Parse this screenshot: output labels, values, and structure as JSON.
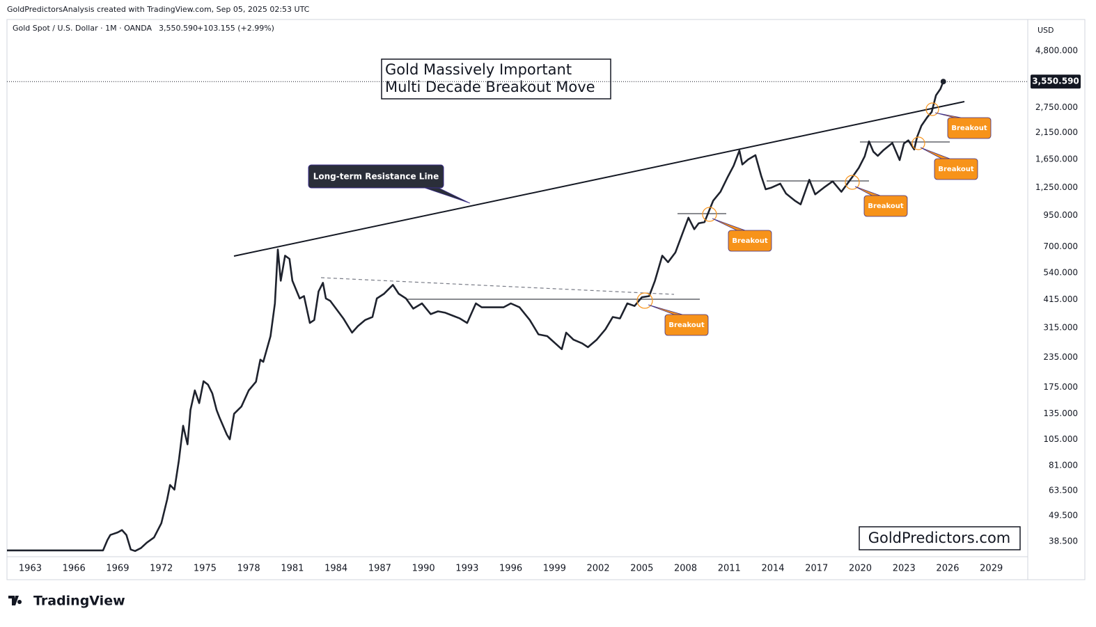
{
  "chart_data": {
    "type": "line",
    "attribution": "GoldPredictorsAnalysis created with TradingView.com, Sep 05, 2025 02:53 UTC",
    "last_price": {
      "value": 3550.59,
      "label": "3,550.590"
    },
    "change": "+103.155 (+2.99%)",
    "currency": "USD",
    "title": [
      "Gold Massively Important",
      "Multi Decade Breakout Move"
    ],
    "annotations": {
      "resistance": "Long-term Resistance Line",
      "breakouts": [
        "Breakout",
        "Breakout",
        "Breakout",
        "Breakout",
        "Breakout"
      ]
    },
    "watermark": "GoldPredictors.com",
    "brand": "TradingView",
    "yscale": "log",
    "grid": false,
    "xlim": [
      1961.4,
      2031.5
    ],
    "ylim": [
      33.08,
      6540
    ],
    "xticks": [
      1963,
      1966,
      1969,
      1972,
      1975,
      1978,
      1981,
      1984,
      1987,
      1990,
      1993,
      1996,
      1999,
      2002,
      2005,
      2008,
      2011,
      2014,
      2017,
      2020,
      2023,
      2026,
      2029
    ],
    "yticks": [
      {
        "value": 4800,
        "label": "4,800.000"
      },
      {
        "value": 2750,
        "label": "2,750.000"
      },
      {
        "value": 2150,
        "label": "2,150.000"
      },
      {
        "value": 1650,
        "label": "1,650.000"
      },
      {
        "value": 1250,
        "label": "1,250.000"
      },
      {
        "value": 950,
        "label": "950.000"
      },
      {
        "value": 700,
        "label": "700.000"
      },
      {
        "value": 540,
        "label": "540.000"
      },
      {
        "value": 415,
        "label": "415.000"
      },
      {
        "value": 315,
        "label": "315.000"
      },
      {
        "value": 235,
        "label": "235.000"
      },
      {
        "value": 175,
        "label": "175.000"
      },
      {
        "value": 135,
        "label": "135.000"
      },
      {
        "value": 105,
        "label": "105.000"
      },
      {
        "value": 81,
        "label": "81.000"
      },
      {
        "value": 63.5,
        "label": "63.500"
      },
      {
        "value": 49.5,
        "label": "49.500"
      },
      {
        "value": 38.5,
        "label": "38.500"
      }
    ],
    "x": [
      1961.4,
      1968.0,
      1968.3,
      1968.5,
      1969.0,
      1969.3,
      1969.6,
      1969.9,
      1970.2,
      1970.6,
      1971.0,
      1971.5,
      1972.0,
      1972.4,
      1972.6,
      1972.9,
      1973.2,
      1973.5,
      1973.8,
      1974.0,
      1974.3,
      1974.6,
      1974.9,
      1975.2,
      1975.5,
      1975.8,
      1976.0,
      1976.5,
      1976.7,
      1977.0,
      1977.5,
      1978.0,
      1978.5,
      1978.8,
      1979.0,
      1979.5,
      1979.8,
      1980.0,
      1980.2,
      1980.5,
      1980.8,
      1981.0,
      1981.5,
      1981.8,
      1982.2,
      1982.5,
      1982.8,
      1983.1,
      1983.3,
      1983.6,
      1984.0,
      1984.5,
      1985.1,
      1985.5,
      1986.0,
      1986.5,
      1986.8,
      1987.3,
      1987.9,
      1988.3,
      1988.8,
      1989.3,
      1989.9,
      1990.5,
      1991.0,
      1991.5,
      1992.0,
      1992.5,
      1993.0,
      1993.6,
      1994.0,
      1994.8,
      1995.5,
      1996.0,
      1996.6,
      1997.3,
      1997.9,
      1998.5,
      1999.5,
      1999.8,
      2000.3,
      2000.9,
      2001.3,
      2001.9,
      2002.5,
      2003.0,
      2003.5,
      2004.0,
      2004.5,
      2005.0,
      2005.5,
      2005.9,
      2006.4,
      2006.8,
      2007.3,
      2007.8,
      2008.2,
      2008.6,
      2008.9,
      2009.3,
      2009.9,
      2010.4,
      2010.9,
      2011.3,
      2011.7,
      2011.9,
      2012.3,
      2012.8,
      2013.2,
      2013.5,
      2013.9,
      2014.5,
      2014.9,
      2015.5,
      2015.9,
      2016.5,
      2016.9,
      2017.5,
      2018.1,
      2018.7,
      2019.5,
      2019.9,
      2020.3,
      2020.6,
      2020.9,
      2021.2,
      2021.6,
      2022.2,
      2022.7,
      2023.0,
      2023.3,
      2023.7,
      2023.9,
      2024.2,
      2024.6,
      2024.9,
      2025.2,
      2025.5,
      2025.7
    ],
    "series": [
      {
        "name": "Gold Spot / U.S. Dollar · 1M · OANDA",
        "color": "#1e222d",
        "values": [
          35.2,
          35.2,
          39,
          41,
          42,
          43,
          41,
          35.5,
          35,
          36,
          38,
          40,
          46,
          58,
          67,
          64,
          85,
          120,
          100,
          140,
          170,
          150,
          186,
          180,
          165,
          140,
          130,
          110,
          105,
          135,
          145,
          170,
          185,
          230,
          225,
          290,
          400,
          680,
          500,
          640,
          620,
          500,
          420,
          430,
          330,
          340,
          450,
          490,
          420,
          410,
          380,
          345,
          300,
          320,
          340,
          350,
          420,
          440,
          480,
          440,
          420,
          380,
          400,
          360,
          370,
          365,
          355,
          345,
          330,
          400,
          385,
          385,
          385,
          400,
          385,
          340,
          295,
          290,
          255,
          300,
          280,
          270,
          260,
          280,
          310,
          350,
          345,
          400,
          390,
          425,
          430,
          500,
          640,
          600,
          660,
          800,
          930,
          830,
          880,
          890,
          1100,
          1200,
          1390,
          1550,
          1800,
          1570,
          1650,
          1720,
          1400,
          1230,
          1250,
          1300,
          1180,
          1100,
          1060,
          1350,
          1170,
          1250,
          1330,
          1200,
          1400,
          1520,
          1700,
          1970,
          1780,
          1710,
          1810,
          1940,
          1640,
          1930,
          1990,
          1820,
          2060,
          2300,
          2500,
          2630,
          3100,
          3300,
          3550.59
        ]
      }
    ]
  }
}
